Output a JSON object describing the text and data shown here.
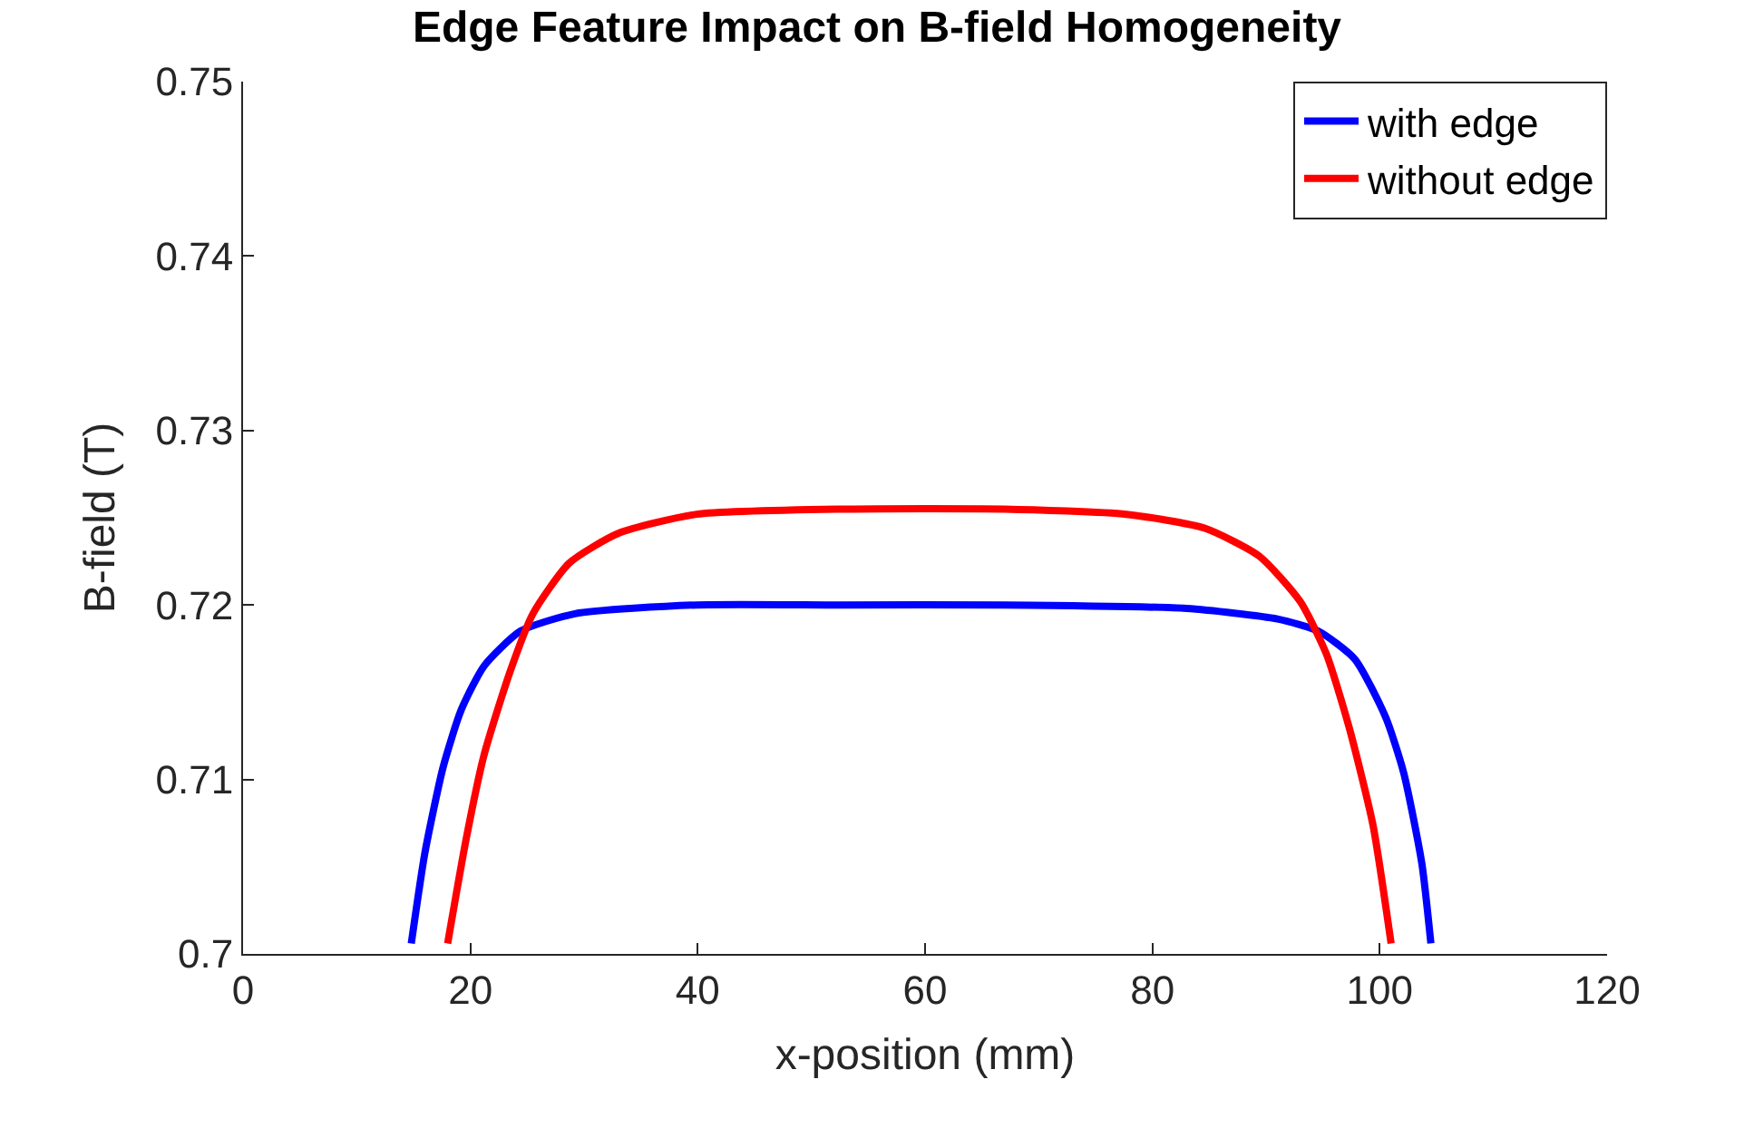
{
  "chart_data": {
    "type": "line",
    "title": "Edge Feature Impact on B-field Homogeneity",
    "xlabel": "x-position (mm)",
    "ylabel": "B-field (T)",
    "xlim": [
      0,
      120
    ],
    "xticks": [
      0,
      20,
      40,
      60,
      80,
      100,
      120
    ],
    "ylim": [
      0.7,
      0.75
    ],
    "yticks": [
      {
        "value": 0.7,
        "label": "0.7"
      },
      0.71,
      0.72,
      0.73,
      0.74,
      0.75
    ],
    "legend": "top right",
    "marker": "none",
    "line_style": "solid",
    "series": [
      {
        "name": "with edge",
        "color": "#0000ff",
        "x": [
          14.8,
          16.0,
          17.6,
          19.2,
          21.2,
          24.4,
          29.2,
          39.9,
          52.5,
          67,
          83,
          91,
          94.6,
          97.8,
          100.5,
          102.1,
          103.7,
          104.5
        ],
        "values": [
          0.7006,
          0.7058,
          0.7107,
          0.714,
          0.7165,
          0.7185,
          0.7195,
          0.72,
          0.72,
          0.72,
          0.7198,
          0.7192,
          0.7185,
          0.7169,
          0.7136,
          0.7104,
          0.7052,
          0.7006
        ]
      },
      {
        "name": "without edge",
        "color": "#ff0000",
        "x": [
          18.0,
          19.6,
          21.2,
          23.5,
          25.5,
          28.7,
          33,
          39.9,
          53.1,
          67,
          77.7,
          84.6,
          89.4,
          93,
          95.3,
          97.3,
          99.4,
          101
        ],
        "values": [
          0.7006,
          0.7065,
          0.7114,
          0.7162,
          0.7195,
          0.7224,
          0.7241,
          0.7252,
          0.7255,
          0.7255,
          0.7252,
          0.7244,
          0.7228,
          0.7202,
          0.7172,
          0.713,
          0.7074,
          0.7006
        ]
      }
    ]
  }
}
